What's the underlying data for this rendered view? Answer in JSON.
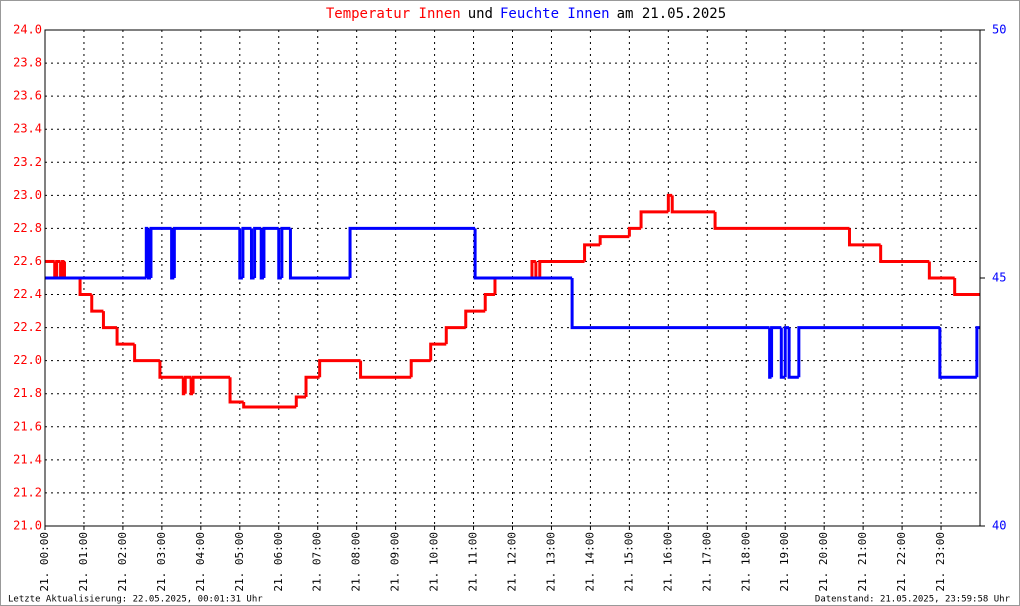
{
  "chart_data": {
    "type": "line",
    "step": true,
    "title_parts": [
      {
        "text": "Temperatur Innen",
        "color": "#ff0000"
      },
      {
        "text": "und",
        "color": "#000000"
      },
      {
        "text": "Feuchte Innen",
        "color": "#0000ff"
      },
      {
        "text": "am 21.05.2025",
        "color": "#000000"
      }
    ],
    "footer_left": "Letzte Aktualisierung: 22.05.2025, 00:01:31 Uhr",
    "footer_right": "Datenstand: 21.05.2025, 23:59:58 Uhr",
    "xlim": [
      0,
      24
    ],
    "xticks": [
      {
        "value": 0,
        "label": "21. 00:00"
      },
      {
        "value": 1,
        "label": "21. 01:00"
      },
      {
        "value": 2,
        "label": "21. 02:00"
      },
      {
        "value": 3,
        "label": "21. 03:00"
      },
      {
        "value": 4,
        "label": "21. 04:00"
      },
      {
        "value": 5,
        "label": "21. 05:00"
      },
      {
        "value": 6,
        "label": "21. 06:00"
      },
      {
        "value": 7,
        "label": "21. 07:00"
      },
      {
        "value": 8,
        "label": "21. 08:00"
      },
      {
        "value": 9,
        "label": "21. 09:00"
      },
      {
        "value": 10,
        "label": "21. 10:00"
      },
      {
        "value": 11,
        "label": "21. 11:00"
      },
      {
        "value": 12,
        "label": "21. 12:00"
      },
      {
        "value": 13,
        "label": "21. 13:00"
      },
      {
        "value": 14,
        "label": "21. 14:00"
      },
      {
        "value": 15,
        "label": "21. 15:00"
      },
      {
        "value": 16,
        "label": "21. 16:00"
      },
      {
        "value": 17,
        "label": "21. 17:00"
      },
      {
        "value": 18,
        "label": "21. 18:00"
      },
      {
        "value": 19,
        "label": "21. 19:00"
      },
      {
        "value": 20,
        "label": "21. 20:00"
      },
      {
        "value": 21,
        "label": "21. 21:00"
      },
      {
        "value": 22,
        "label": "21. 22:00"
      },
      {
        "value": 23,
        "label": "21. 23:00"
      }
    ],
    "ylim": [
      21.0,
      24.0
    ],
    "yticks": [
      {
        "value": 21.0,
        "label": "21.0"
      },
      {
        "value": 21.2,
        "label": "21.2"
      },
      {
        "value": 21.4,
        "label": "21.4"
      },
      {
        "value": 21.6,
        "label": "21.6"
      },
      {
        "value": 21.8,
        "label": "21.8"
      },
      {
        "value": 22.0,
        "label": "22.0"
      },
      {
        "value": 22.2,
        "label": "22.2"
      },
      {
        "value": 22.4,
        "label": "22.4"
      },
      {
        "value": 22.6,
        "label": "22.6"
      },
      {
        "value": 22.8,
        "label": "22.8"
      },
      {
        "value": 23.0,
        "label": "23.0"
      },
      {
        "value": 23.2,
        "label": "23.2"
      },
      {
        "value": 23.4,
        "label": "23.4"
      },
      {
        "value": 23.6,
        "label": "23.6"
      },
      {
        "value": 23.8,
        "label": "23.8"
      },
      {
        "value": 24.0,
        "label": "24.0"
      }
    ],
    "y2lim": [
      40,
      50
    ],
    "y2ticks": [
      40,
      45,
      50
    ],
    "grid": true,
    "series": [
      {
        "name": "Temperatur Innen",
        "color": "#ff0000",
        "axis": "y",
        "x": [
          0,
          0.25,
          0.3,
          0.4,
          0.45,
          0.5,
          0.9,
          1.2,
          1.5,
          1.85,
          2.3,
          2.95,
          3.55,
          3.6,
          3.75,
          3.8,
          4.75,
          5.1,
          6.45,
          6.7,
          7.05,
          8.1,
          9.4,
          9.9,
          10.3,
          10.8,
          11.3,
          11.55,
          12.5,
          12.6,
          12.7,
          13.85,
          14.25,
          15.0,
          15.3,
          16.0,
          16.1,
          17.2,
          20.65,
          21.45,
          22.7,
          23.35
        ],
        "values": [
          22.6,
          22.5,
          22.6,
          22.5,
          22.6,
          22.5,
          22.4,
          22.3,
          22.2,
          22.1,
          22.0,
          21.9,
          21.8,
          21.9,
          21.8,
          21.9,
          21.75,
          21.72,
          21.78,
          21.9,
          22.0,
          21.9,
          22.0,
          22.1,
          22.2,
          22.3,
          22.4,
          22.5,
          22.6,
          22.5,
          22.6,
          22.7,
          22.75,
          22.8,
          22.9,
          23.0,
          22.9,
          22.8,
          22.7,
          22.6,
          22.5,
          22.4
        ]
      },
      {
        "name": "Feuchte Innen",
        "color": "#0000ff",
        "axis": "y2",
        "x": [
          0,
          2.6,
          2.65,
          2.72,
          3.25,
          3.32,
          5.0,
          5.08,
          5.3,
          5.38,
          5.55,
          5.62,
          6.0,
          6.08,
          6.3,
          7.83,
          11.04,
          13.53,
          18.6,
          18.65,
          18.9,
          19.0,
          19.1,
          19.35,
          22.97,
          23.92
        ],
        "values": [
          45,
          46,
          45,
          46,
          45,
          46,
          45,
          46,
          45,
          46,
          45,
          46,
          45,
          46,
          45,
          46,
          45,
          44,
          43,
          44,
          43,
          44,
          43,
          44,
          43,
          44
        ]
      }
    ]
  }
}
